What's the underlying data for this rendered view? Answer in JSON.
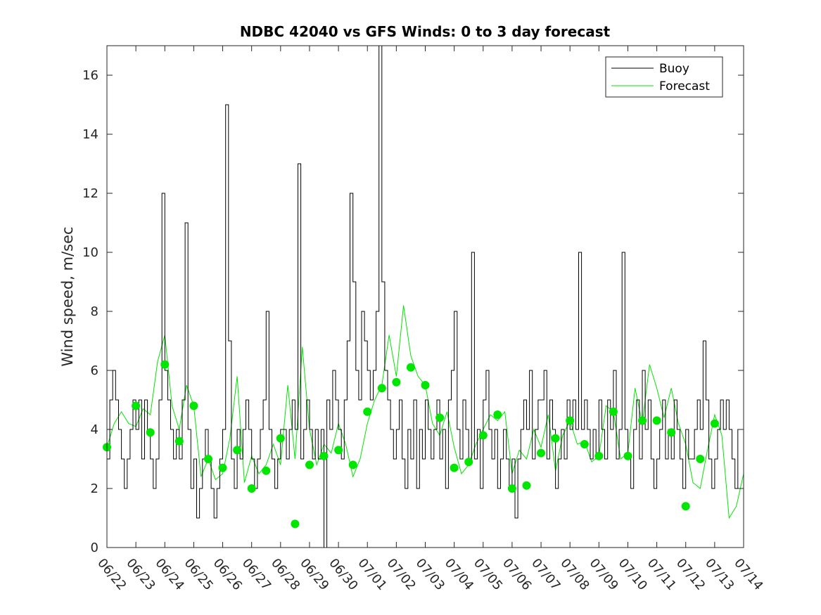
{
  "chart_data": {
    "type": "line",
    "title": "NDBC 42040 vs GFS Winds: 0 to 3 day forecast",
    "xlabel": "",
    "ylabel": "Wind speed, m/sec",
    "xlim": [
      "2016-06-22",
      "2016-07-14"
    ],
    "ylim": [
      0,
      17
    ],
    "x_tick_labels": [
      "06/22",
      "06/23",
      "06/24",
      "06/25",
      "06/26",
      "06/27",
      "06/28",
      "06/29",
      "06/30",
      "07/01",
      "07/02",
      "07/03",
      "07/04",
      "07/05",
      "07/06",
      "07/07",
      "07/08",
      "07/09",
      "07/10",
      "07/11",
      "07/12",
      "07/13",
      "07/14"
    ],
    "y_ticks": [
      0,
      2,
      4,
      6,
      8,
      10,
      12,
      14,
      16
    ],
    "grid": false,
    "legend_position": "top-right",
    "colors": {
      "buoy": "#000000",
      "forecast": "#00e600",
      "marker": "#00e600"
    },
    "series": [
      {
        "name": "Buoy",
        "day_offsets": [
          0.0,
          0.1,
          0.2,
          0.3,
          0.4,
          0.5,
          0.6,
          0.7,
          0.8,
          0.9,
          1.0,
          1.1,
          1.2,
          1.3,
          1.4,
          1.5,
          1.6,
          1.7,
          1.8,
          1.9,
          2.0,
          2.1,
          2.2,
          2.3,
          2.4,
          2.5,
          2.6,
          2.7,
          2.8,
          2.9,
          3.0,
          3.1,
          3.2,
          3.3,
          3.4,
          3.5,
          3.6,
          3.7,
          3.8,
          3.9,
          4.0,
          4.1,
          4.2,
          4.3,
          4.4,
          4.5,
          4.6,
          4.7,
          4.8,
          4.9,
          5.0,
          5.1,
          5.2,
          5.3,
          5.4,
          5.5,
          5.6,
          5.7,
          5.8,
          5.9,
          6.0,
          6.1,
          6.2,
          6.3,
          6.4,
          6.5,
          6.6,
          6.7,
          6.8,
          6.9,
          7.0,
          7.1,
          7.2,
          7.3,
          7.4,
          7.5,
          7.6,
          7.7,
          7.8,
          7.9,
          8.0,
          8.1,
          8.2,
          8.3,
          8.4,
          8.5,
          8.6,
          8.7,
          8.8,
          8.9,
          9.0,
          9.1,
          9.2,
          9.3,
          9.4,
          9.5,
          9.6,
          9.7,
          9.8,
          9.9,
          10.0,
          10.1,
          10.2,
          10.3,
          10.4,
          10.5,
          10.6,
          10.7,
          10.8,
          10.9,
          11.0,
          11.1,
          11.2,
          11.3,
          11.4,
          11.5,
          11.6,
          11.7,
          11.8,
          11.9,
          12.0,
          12.1,
          12.2,
          12.3,
          12.4,
          12.5,
          12.6,
          12.7,
          12.8,
          12.9,
          13.0,
          13.1,
          13.2,
          13.3,
          13.4,
          13.5,
          13.6,
          13.7,
          13.8,
          13.9,
          14.0,
          14.1,
          14.2,
          14.3,
          14.4,
          14.5,
          14.6,
          14.7,
          14.8,
          14.9,
          15.0,
          15.1,
          15.2,
          15.3,
          15.4,
          15.5,
          15.6,
          15.7,
          15.8,
          15.9,
          16.0,
          16.1,
          16.2,
          16.3,
          16.4,
          16.5,
          16.6,
          16.7,
          16.8,
          16.9,
          17.0,
          17.1,
          17.2,
          17.3,
          17.4,
          17.5,
          17.6,
          17.7,
          17.8,
          17.9,
          18.0,
          18.1,
          18.2,
          18.3,
          18.4,
          18.5,
          18.6,
          18.7,
          18.8,
          18.9,
          19.0,
          19.1,
          19.2,
          19.3,
          19.4,
          19.5,
          19.6,
          19.7,
          19.8,
          19.9,
          20.0,
          20.1,
          20.2,
          20.3,
          20.4,
          20.5,
          20.6,
          20.7,
          20.8,
          20.9,
          21.0,
          21.1,
          21.2,
          21.3,
          21.4,
          21.5,
          21.6,
          21.7,
          21.8,
          21.9,
          22.0
        ],
        "values": [
          3,
          5,
          6,
          5,
          4,
          3,
          2,
          3,
          4,
          5,
          4,
          5,
          3,
          5,
          4,
          3,
          2,
          3,
          5,
          12,
          6,
          5,
          4,
          3,
          4,
          3,
          5,
          11,
          4,
          2,
          3,
          1,
          2,
          3,
          4,
          3,
          2,
          1,
          2,
          3,
          4,
          15,
          7,
          3,
          2,
          4,
          3,
          4,
          5,
          4,
          3,
          2,
          3,
          4,
          5,
          8,
          4,
          3,
          2,
          3,
          4,
          4,
          3,
          4,
          5,
          4,
          13,
          3,
          4,
          5,
          4,
          3,
          4,
          3,
          4,
          0,
          5,
          4,
          6,
          5,
          4,
          3,
          5,
          7,
          12,
          9,
          6,
          5,
          8,
          7,
          6,
          5,
          6,
          8,
          17,
          9,
          6,
          5,
          4,
          3,
          4,
          5,
          3,
          2,
          4,
          3,
          5,
          2,
          4,
          3,
          5,
          4,
          3,
          4,
          5,
          3,
          4,
          2,
          5,
          6,
          8,
          4,
          3,
          5,
          4,
          3,
          10,
          3,
          4,
          2,
          5,
          6,
          4,
          3,
          4,
          2,
          3,
          4,
          3,
          2,
          3,
          1,
          3,
          4,
          5,
          4,
          6,
          3,
          4,
          5,
          5,
          6,
          3,
          5,
          4,
          2,
          3,
          4,
          3,
          5,
          4,
          5,
          4,
          10,
          4,
          5,
          4,
          3,
          4,
          3,
          5,
          4,
          3,
          5,
          4,
          6,
          3,
          4,
          10,
          4,
          3,
          2,
          4,
          5,
          3,
          6,
          4,
          5,
          3,
          2,
          3,
          4,
          5,
          3,
          4,
          3,
          5,
          4,
          3,
          2,
          4,
          3,
          3,
          4,
          5,
          4,
          7,
          5,
          3,
          2,
          3,
          4,
          5,
          4,
          5,
          4,
          3,
          2,
          4
        ]
      },
      {
        "name": "Forecast",
        "day_offsets": [
          0.0,
          0.25,
          0.5,
          0.75,
          1.0,
          1.25,
          1.5,
          1.75,
          2.0,
          2.25,
          2.5,
          2.75,
          3.0,
          3.25,
          3.5,
          3.75,
          4.0,
          4.25,
          4.5,
          4.75,
          5.0,
          5.25,
          5.5,
          5.75,
          6.0,
          6.25,
          6.5,
          6.75,
          7.0,
          7.25,
          7.5,
          7.75,
          8.0,
          8.25,
          8.5,
          8.75,
          9.0,
          9.25,
          9.5,
          9.75,
          10.0,
          10.25,
          10.5,
          10.75,
          11.0,
          11.25,
          11.5,
          11.75,
          12.0,
          12.25,
          12.5,
          12.75,
          13.0,
          13.25,
          13.5,
          13.75,
          14.0,
          14.25,
          14.5,
          14.75,
          15.0,
          15.25,
          15.5,
          15.75,
          16.0,
          16.25,
          16.5,
          16.75,
          17.0,
          17.25,
          17.5,
          17.75,
          18.0,
          18.25,
          18.5,
          18.75,
          19.0,
          19.25,
          19.5,
          19.75,
          20.0,
          20.25,
          20.5,
          20.75,
          21.0,
          21.25,
          21.5,
          21.75,
          22.0
        ],
        "values": [
          3.4,
          4.2,
          4.6,
          4.2,
          4.1,
          4.7,
          4.5,
          6.3,
          7.2,
          4.8,
          4.0,
          5.5,
          4.8,
          2.4,
          3.0,
          2.3,
          2.5,
          3.7,
          5.8,
          2.2,
          3.1,
          2.5,
          2.8,
          3.5,
          2.8,
          5.5,
          3.0,
          6.8,
          4.0,
          2.8,
          3.5,
          3.2,
          4.2,
          3.5,
          2.4,
          3.0,
          4.2,
          5.0,
          5.5,
          7.2,
          5.8,
          8.2,
          6.5,
          5.8,
          5.5,
          4.2,
          3.8,
          4.6,
          3.4,
          2.5,
          2.8,
          3.5,
          4.0,
          4.5,
          4.3,
          4.6,
          2.5,
          3.3,
          3.0,
          4.0,
          3.4,
          4.5,
          2.6,
          3.8,
          4.3,
          3.5,
          3.6,
          2.9,
          3.1,
          4.8,
          4.6,
          3.0,
          3.2,
          5.4,
          4.2,
          6.2,
          5.4,
          4.4,
          5.4,
          4.2,
          3.5,
          2.2,
          2.0,
          3.3,
          4.5,
          3.8,
          1.0,
          1.4,
          2.5
        ]
      }
    ],
    "analysis_markers": {
      "day_offsets": [
        0.0,
        1.0,
        1.5,
        2.0,
        2.5,
        3.0,
        3.5,
        4.0,
        4.5,
        5.0,
        5.5,
        6.0,
        6.5,
        7.0,
        7.5,
        8.0,
        8.5,
        9.0,
        9.5,
        10.0,
        10.5,
        11.0,
        11.5,
        12.0,
        12.5,
        13.0,
        13.5,
        14.0,
        14.5,
        15.0,
        15.5,
        16.0,
        16.5,
        17.0,
        17.5,
        18.0,
        18.5,
        19.0,
        19.5,
        20.0,
        20.5,
        21.0
      ],
      "values": [
        3.4,
        4.8,
        3.9,
        6.2,
        3.6,
        4.8,
        3.0,
        2.7,
        3.3,
        2.0,
        2.6,
        3.7,
        0.8,
        2.8,
        3.1,
        3.3,
        2.8,
        4.6,
        5.4,
        5.6,
        6.1,
        5.5,
        4.4,
        2.7,
        2.9,
        3.8,
        4.5,
        2.0,
        2.1,
        3.2,
        3.7,
        4.3,
        3.5,
        3.1,
        4.6,
        3.1,
        4.3,
        4.3,
        3.9,
        1.4,
        3.0,
        4.2
      ]
    }
  }
}
